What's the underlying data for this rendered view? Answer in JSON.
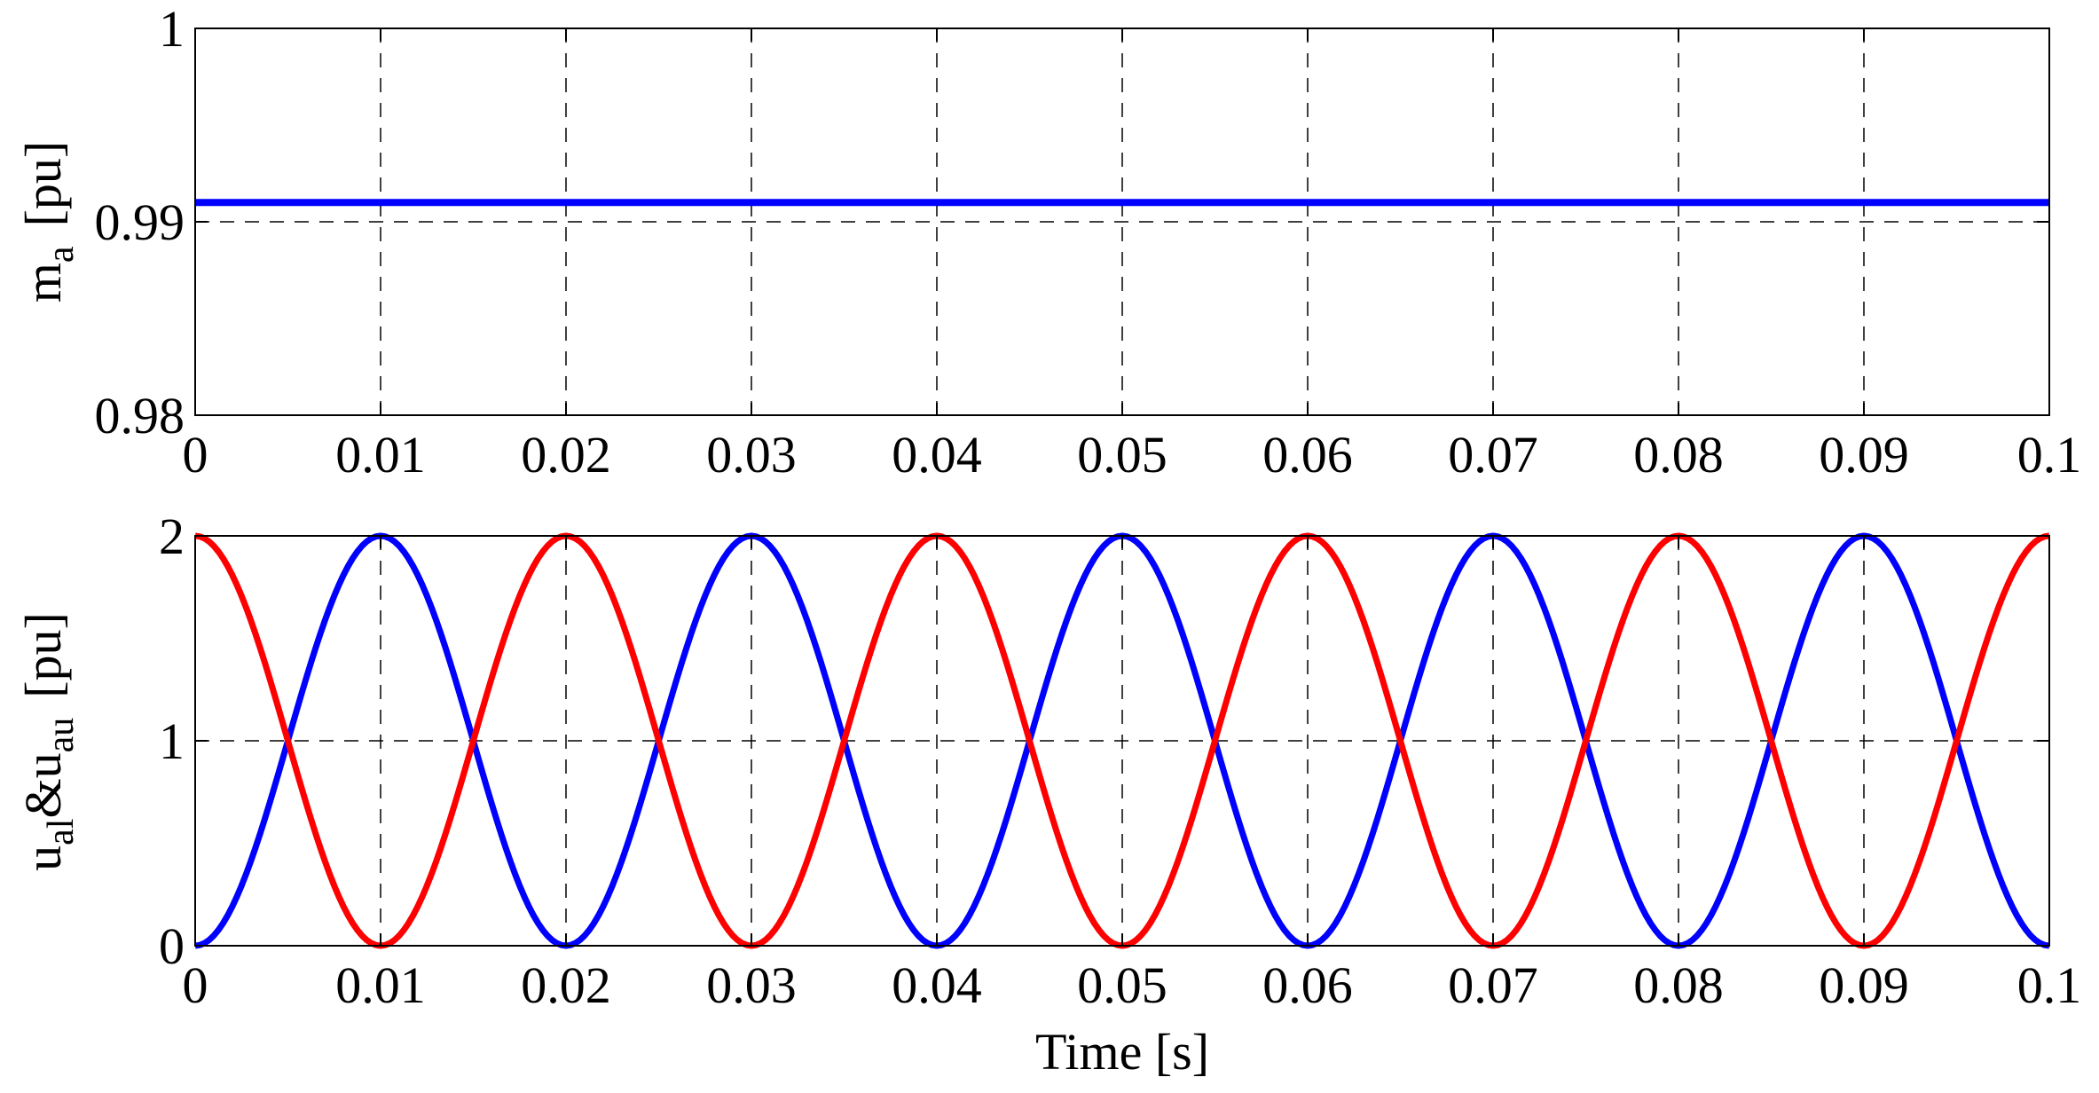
{
  "colors": {
    "blue": "#0000ff",
    "red": "#ff0000",
    "axes": "#000000",
    "grid": "#000000"
  },
  "chart_data": [
    {
      "type": "line",
      "ylabel": {
        "main": "m",
        "sub": "a",
        "unit": "[pu]"
      },
      "xlim": [
        0,
        0.1
      ],
      "ylim": [
        0.98,
        1
      ],
      "xticks": [
        "0",
        "0.01",
        "0.02",
        "0.03",
        "0.04",
        "0.05",
        "0.06",
        "0.07",
        "0.08",
        "0.09",
        "0.1"
      ],
      "yticks": [
        "0.98",
        "0.99",
        "1"
      ],
      "grid": true,
      "series": [
        {
          "color": "#0000ff",
          "x": [
            0,
            0.1
          ],
          "y": [
            0.991,
            0.991
          ]
        }
      ]
    },
    {
      "type": "line",
      "xlabel": "Time [s]",
      "ylabel": {
        "u1": "u",
        "s1": "al",
        "amp": "&",
        "u2": "u",
        "s2": "au",
        "unit": "[pu]"
      },
      "xlim": [
        0,
        0.1
      ],
      "ylim": [
        0,
        2
      ],
      "xticks": [
        "0",
        "0.01",
        "0.02",
        "0.03",
        "0.04",
        "0.05",
        "0.06",
        "0.07",
        "0.08",
        "0.09",
        "0.1"
      ],
      "yticks": [
        "0",
        "1",
        "2"
      ],
      "grid": true,
      "series": [
        {
          "color": "#0000ff",
          "x": [
            0,
            0.01,
            0.02,
            0.03,
            0.04,
            0.05,
            0.06,
            0.07,
            0.08,
            0.09,
            0.1
          ],
          "y": [
            0,
            2,
            0,
            2,
            0,
            2,
            0,
            2,
            0,
            2,
            0
          ]
        },
        {
          "color": "#ff0000",
          "x": [
            0,
            0.01,
            0.02,
            0.03,
            0.04,
            0.05,
            0.06,
            0.07,
            0.08,
            0.09,
            0.1
          ],
          "y": [
            2,
            0,
            2,
            0,
            2,
            0,
            2,
            0,
            2,
            0,
            2
          ]
        }
      ]
    }
  ]
}
